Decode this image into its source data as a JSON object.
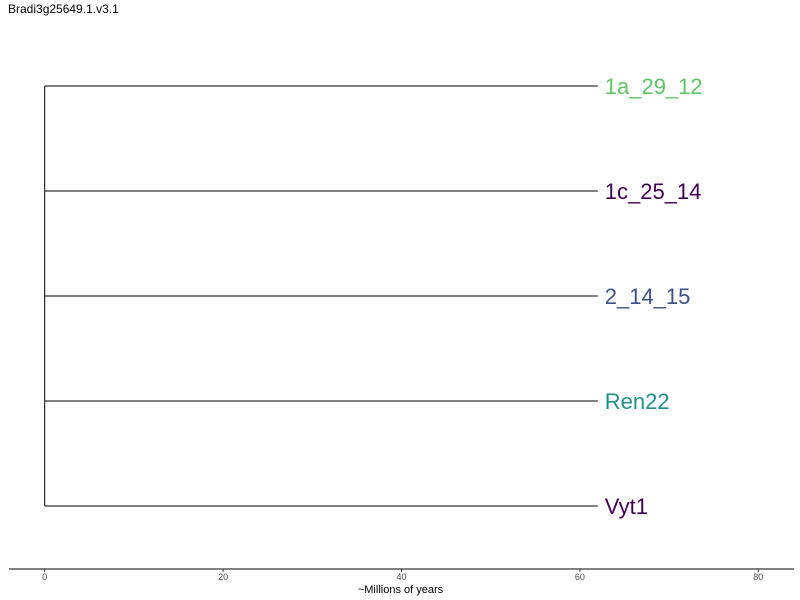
{
  "chart_data": {
    "type": "tree",
    "title": "Bradi3g25649.1.v3.1",
    "xlabel": "~Millions of years",
    "xlim": [
      -4,
      84
    ],
    "x_ticks": [
      0,
      20,
      40,
      60,
      80
    ],
    "tips": [
      {
        "label": "1a_29_12",
        "branch_end": 62,
        "color": "#5DC863"
      },
      {
        "label": "1c_25_14",
        "branch_end": 62,
        "color": "#440154"
      },
      {
        "label": "2_14_15",
        "branch_end": 62,
        "color": "#3B528B"
      },
      {
        "label": "Ren22",
        "branch_end": 62,
        "color": "#21908C"
      },
      {
        "label": "Vyt1",
        "branch_end": 62,
        "color": "#440154"
      }
    ],
    "root_position": 0,
    "grid": false
  }
}
